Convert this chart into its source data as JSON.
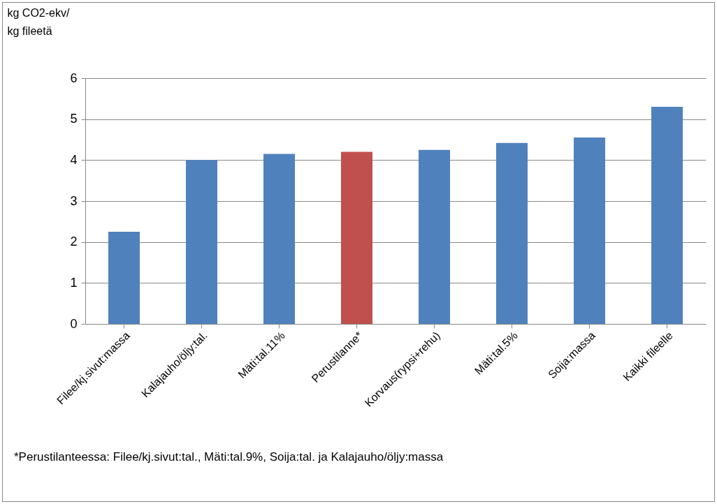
{
  "chart_data": {
    "type": "bar",
    "ylabel": "kg CO2-ekv/\nkg fileetä",
    "categories": [
      "Filee/kj.sivut:massa",
      "Kalajauho/öljy:tal.",
      "Mäti:tal.11%",
      "Perustilanne*",
      "Korvaus(rypsi+rehu)",
      "Mäti:tal.5%",
      "Soija:massa",
      "Kaikki fileelle"
    ],
    "values": [
      2.25,
      4.0,
      4.15,
      4.2,
      4.25,
      4.42,
      4.55,
      5.3
    ],
    "colors": [
      "#4f81bd",
      "#4f81bd",
      "#4f81bd",
      "#c0504d",
      "#4f81bd",
      "#4f81bd",
      "#4f81bd",
      "#4f81bd"
    ],
    "ylim": [
      0,
      6
    ],
    "yticks": [
      0,
      1,
      2,
      3,
      4,
      5,
      6
    ],
    "grid": "y",
    "annotations": [
      "*Perustilanteessa: Filee/kj.sivut:tal., Mäti:tal.9%, Soija:tal. ja Kalajauho/öljy:massa"
    ]
  }
}
